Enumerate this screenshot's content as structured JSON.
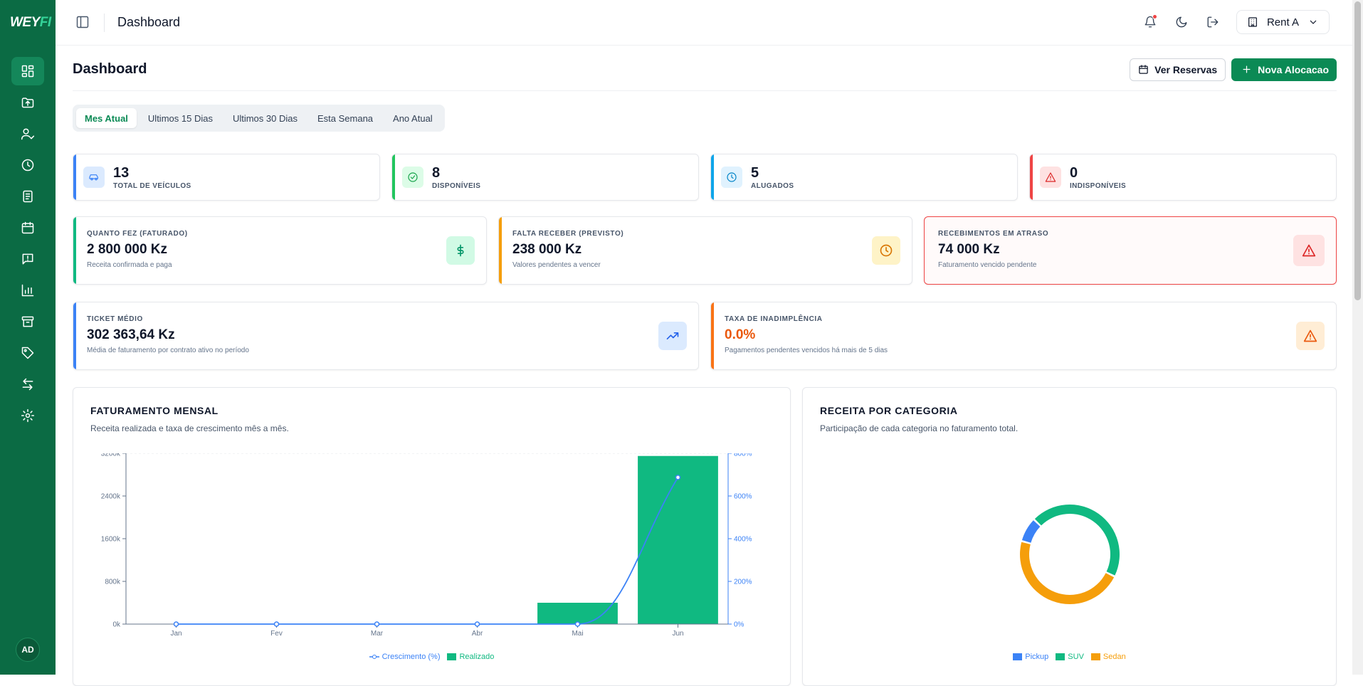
{
  "app": {
    "logo_main": "WEY",
    "logo_accent": "FI"
  },
  "sidebar": {
    "items": [
      {
        "name": "dashboard",
        "icon": "grid-icon",
        "active": true
      },
      {
        "name": "upload",
        "icon": "folder-upload-icon"
      },
      {
        "name": "users",
        "icon": "user-check-icon"
      },
      {
        "name": "history",
        "icon": "clock-icon"
      },
      {
        "name": "documents",
        "icon": "document-icon"
      },
      {
        "name": "calendar",
        "icon": "calendar-icon"
      },
      {
        "name": "alerts",
        "icon": "message-alert-icon"
      },
      {
        "name": "reports",
        "icon": "bar-chart-icon"
      },
      {
        "name": "archive",
        "icon": "archive-icon"
      },
      {
        "name": "tags",
        "icon": "tag-icon"
      },
      {
        "name": "transfers",
        "icon": "arrows-icon"
      },
      {
        "name": "settings",
        "icon": "gear-icon"
      }
    ],
    "avatar": "AD"
  },
  "topbar": {
    "title": "Dashboard",
    "tenant": "Rent A"
  },
  "page": {
    "title": "Dashboard",
    "btn_reservas": "Ver Reservas",
    "btn_nova": "Nova Alocacao",
    "tabs": [
      "Mes Atual",
      "Ultimos 15 Dias",
      "Ultimos 30 Dias",
      "Esta Semana",
      "Ano Atual"
    ]
  },
  "stats": [
    {
      "value": "13",
      "label": "TOTAL DE VEÍCULOS",
      "color": "#3b82f6"
    },
    {
      "value": "8",
      "label": "DISPONÍVEIS",
      "color": "#22c55e"
    },
    {
      "value": "5",
      "label": "ALUGADOS",
      "color": "#0ea5e9"
    },
    {
      "value": "0",
      "label": "INDISPONÍVEIS",
      "color": "#ef4444"
    }
  ],
  "finance": [
    {
      "title": "QUANTO FEZ (FATURADO)",
      "value": "2 800 000 Kz",
      "sub": "Receita confirmada e paga"
    },
    {
      "title": "FALTA RECEBER (PREVISTO)",
      "value": "238 000 Kz",
      "sub": "Valores pendentes a vencer"
    },
    {
      "title": "RECEBIMENTOS EM ATRASO",
      "value": "74 000 Kz",
      "sub": "Faturamento vencido pendente"
    },
    {
      "title": "TICKET MÉDIO",
      "value": "302 363,64 Kz",
      "sub": "Média de faturamento por contrato ativo no período"
    },
    {
      "title": "TAXA DE INADIMPLÊNCIA",
      "value": "0.0%",
      "sub": "Pagamentos pendentes vencidos há mais de 5 dias"
    }
  ],
  "charts": {
    "monthly": {
      "title": "FATURAMENTO MENSAL",
      "subtitle": "Receita realizada e taxa de crescimento mês a mês."
    },
    "category": {
      "title": "RECEITA POR CATEGORIA",
      "subtitle": "Participação de cada categoria no faturamento total."
    }
  },
  "chart_data": [
    {
      "type": "bar",
      "categories": [
        "Jan",
        "Fev",
        "Mar",
        "Abr",
        "Mai",
        "Jun"
      ],
      "y_ticks": [
        "0k",
        "800k",
        "1600k",
        "2400k",
        "3200k"
      ],
      "y2_ticks": [
        "0%",
        "200%",
        "400%",
        "600%",
        "800%"
      ],
      "ylim": [
        0,
        3200
      ],
      "y2lim": [
        0,
        800
      ],
      "series": [
        {
          "name": "Realizado",
          "type": "bar",
          "values": [
            0,
            0,
            0,
            0,
            400,
            3150
          ],
          "color": "#10b981"
        },
        {
          "name": "Crescimento (%)",
          "type": "line",
          "values": [
            0,
            0,
            0,
            0,
            0,
            687
          ],
          "color": "#3b82f6"
        }
      ]
    },
    {
      "type": "pie",
      "labels": [
        "Pickup",
        "SUV",
        "Sedan"
      ],
      "values": [
        8,
        45,
        47
      ],
      "colors": [
        "#3b82f6",
        "#10b981",
        "#f59e0b"
      ]
    }
  ]
}
